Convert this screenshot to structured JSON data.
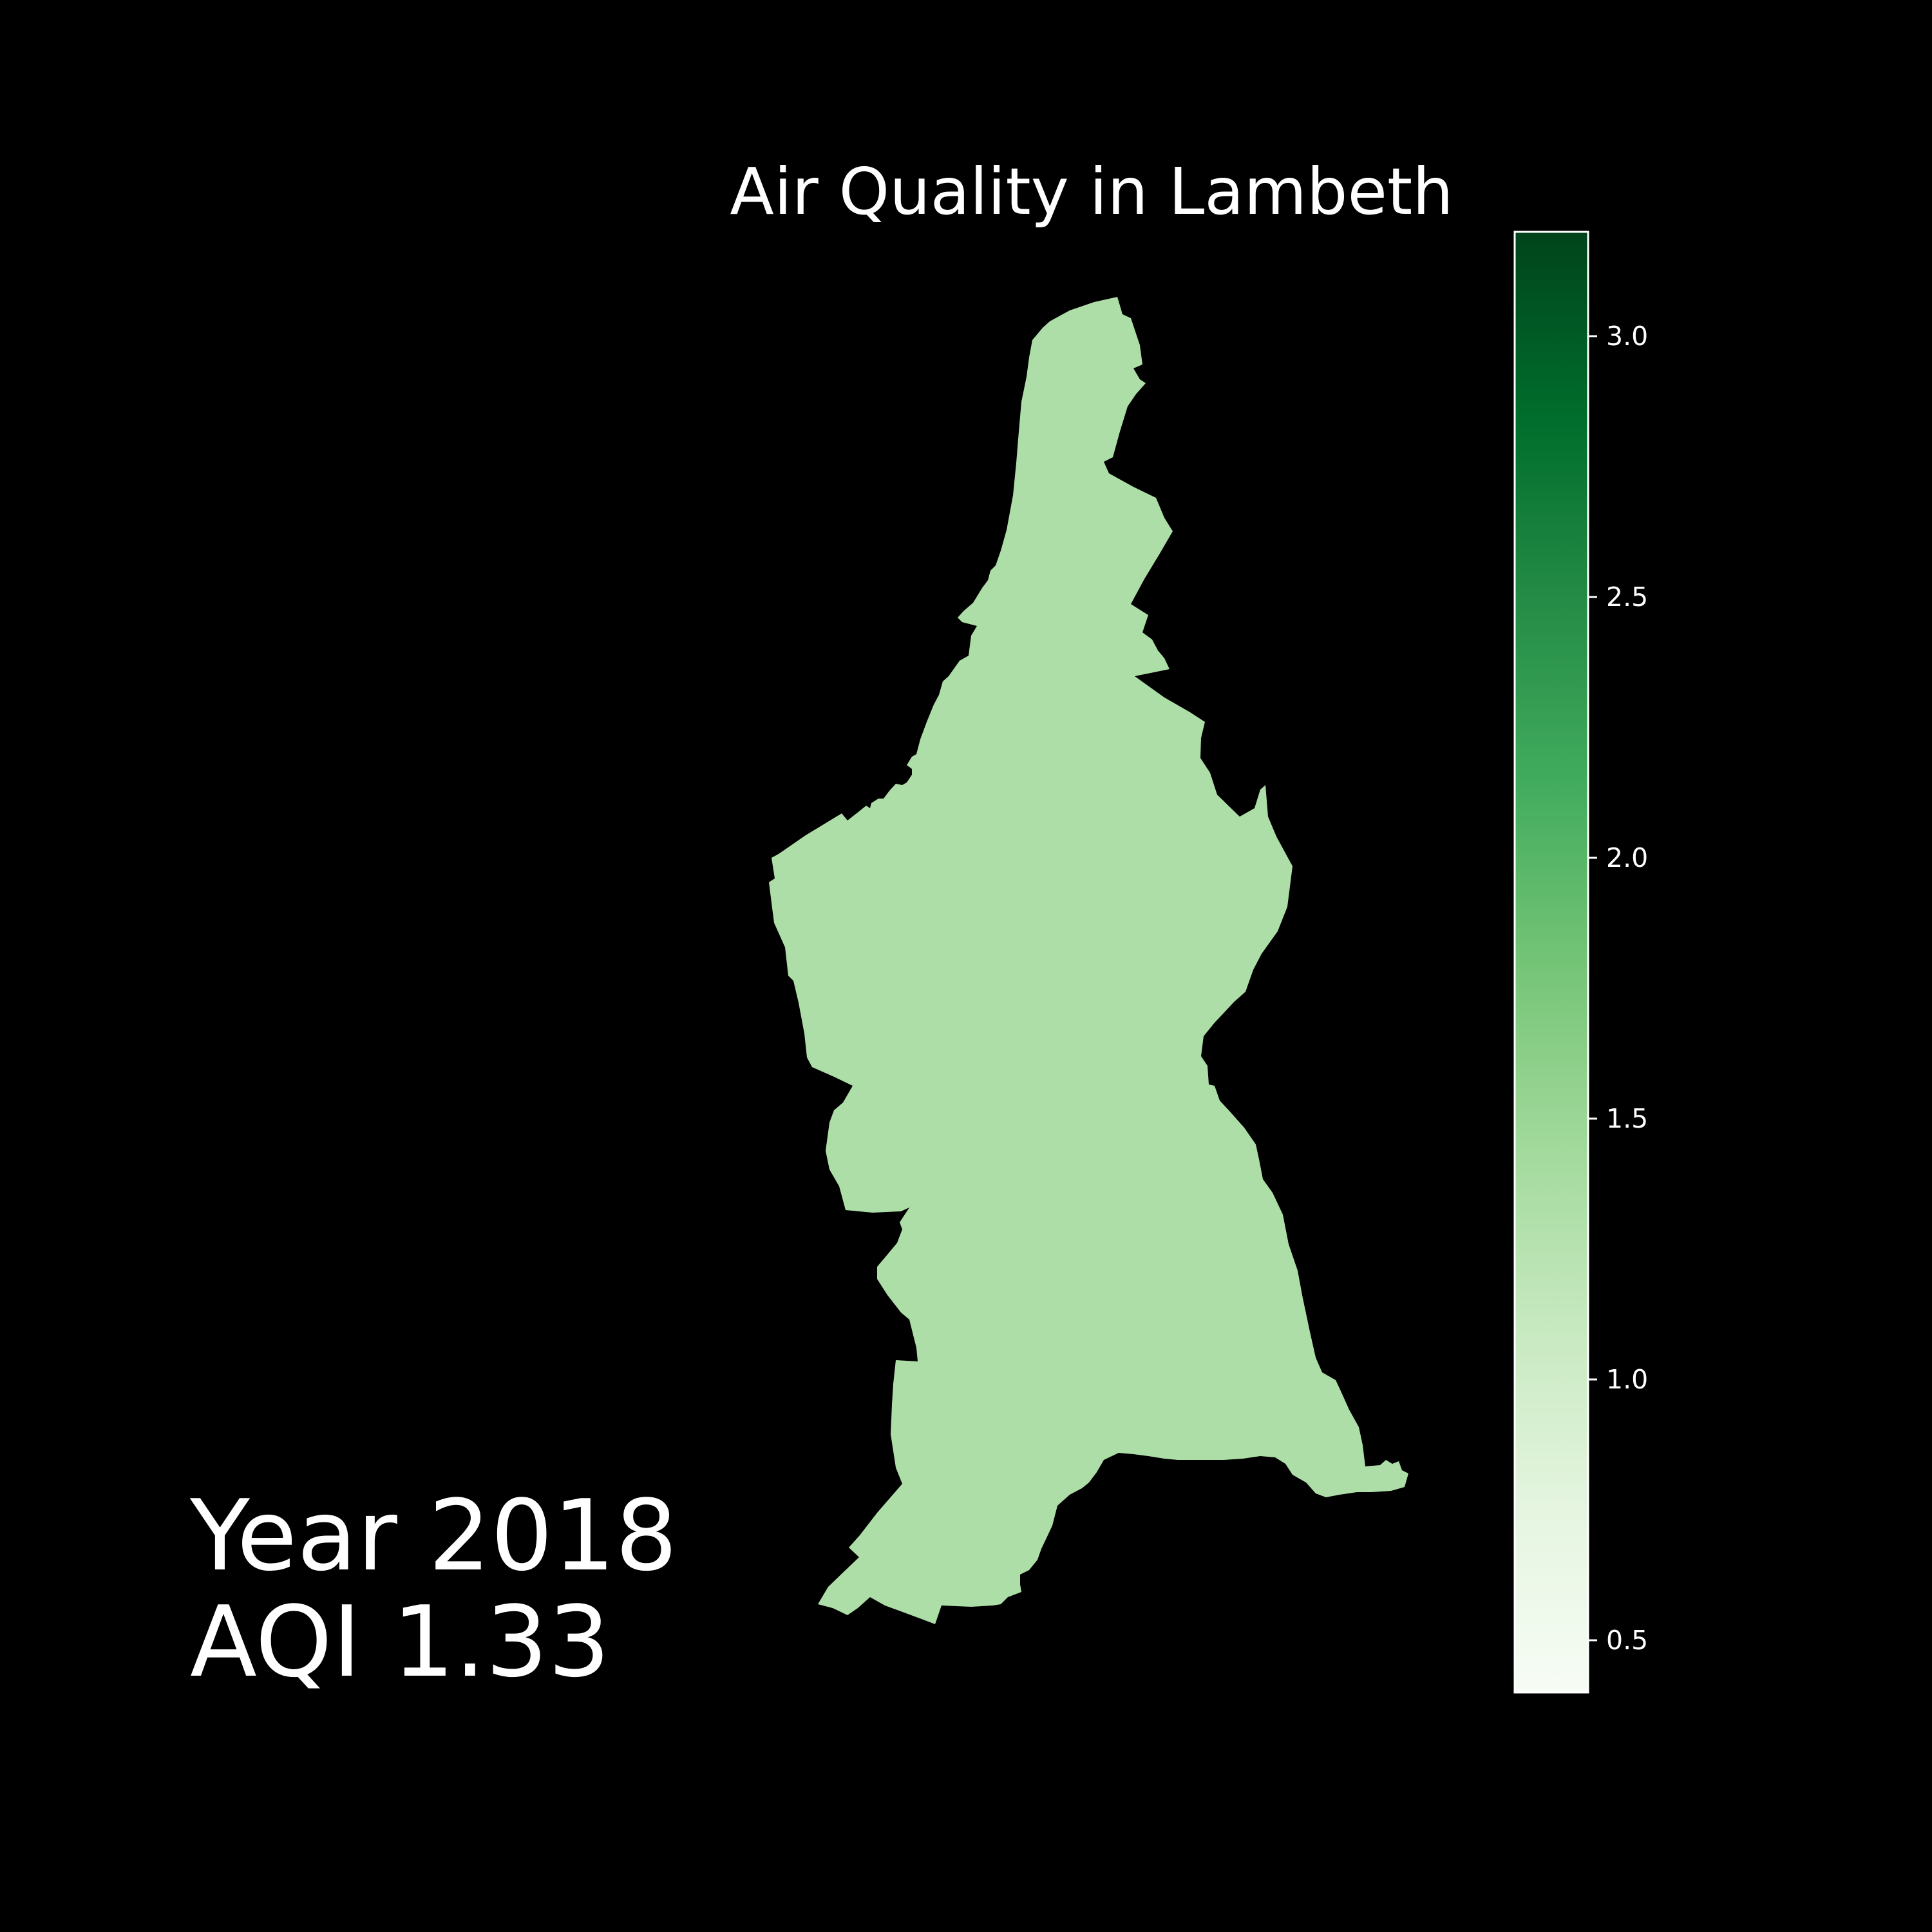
{
  "map": {
    "title": "Air Quality in Lambeth",
    "region_fill": "#aedea7",
    "background": "#000000"
  },
  "info": {
    "year_prefix": "Year",
    "year": "2018",
    "aqi_prefix": "AQI",
    "aqi": "1.33"
  },
  "colorbar": {
    "colormap": "Greens",
    "range": [
      0.4,
      3.2
    ],
    "ticks": [
      0.5,
      1.0,
      1.5,
      2.0,
      2.5,
      3.0
    ],
    "tick_labels": [
      "0.5",
      "1.0",
      "1.5",
      "2.0",
      "2.5",
      "3.0"
    ],
    "stops": [
      "#f7fcf5",
      "#e5f5e0",
      "#c7e9c0",
      "#a1d99b",
      "#74c476",
      "#41ab5d",
      "#238b45",
      "#006d2c",
      "#00441b"
    ]
  }
}
